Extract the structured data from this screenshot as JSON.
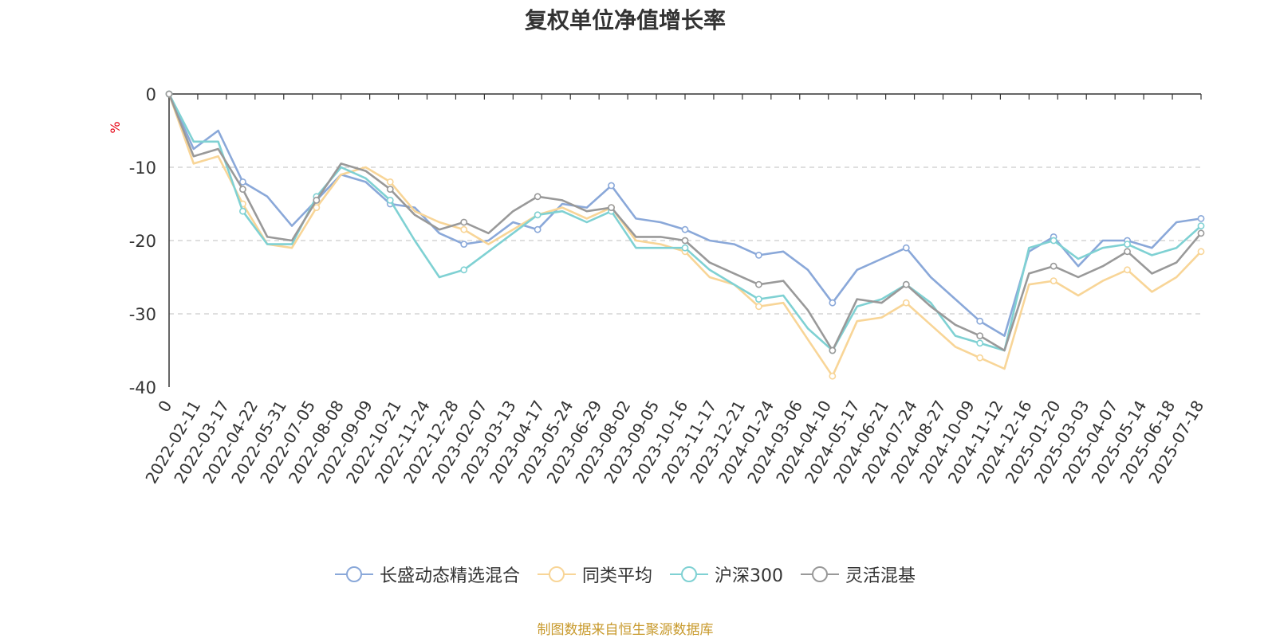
{
  "chart_data": {
    "type": "line",
    "title": "复权单位净值增长率",
    "ylabel": "%",
    "ylim": [
      -40,
      0
    ],
    "yticks": [
      0,
      -10,
      -20,
      -30,
      -40
    ],
    "grid": true,
    "legend_position": "bottom-center",
    "x_ticks": [
      "0",
      "2022-02-11",
      "2022-03-17",
      "2022-04-22",
      "2022-05-31",
      "2022-07-05",
      "2022-08-08",
      "2022-09-09",
      "2022-10-21",
      "2022-11-24",
      "2022-12-28",
      "2023-02-07",
      "2023-03-13",
      "2023-04-17",
      "2023-05-24",
      "2023-06-29",
      "2023-08-02",
      "2023-09-05",
      "2023-10-16",
      "2023-11-17",
      "2023-12-21",
      "2024-01-24",
      "2024-03-06",
      "2024-04-10",
      "2024-05-17",
      "2024-06-21",
      "2024-07-24",
      "2024-08-27",
      "2024-10-09",
      "2024-11-12",
      "2024-12-16",
      "2025-01-20",
      "2025-03-03",
      "2025-04-07",
      "2025-05-14",
      "2025-06-18",
      "2025-07-18"
    ],
    "series": [
      {
        "name": "长盛动态精选混合",
        "color": "#8aa8d9",
        "values": [
          0,
          -7.5,
          -5,
          -12,
          -14,
          -18,
          -14.5,
          -11,
          -12,
          -15,
          -15.5,
          -19,
          -20.5,
          -20,
          -17.5,
          -18.5,
          -15,
          -15.5,
          -12.5,
          -17,
          -17.5,
          -18.5,
          -20,
          -20.5,
          -22,
          -21.5,
          -24,
          -28.5,
          -24,
          -22.5,
          -21,
          -25,
          -28,
          -31,
          -33,
          -21.5,
          -19.5,
          -23.5,
          -20,
          -20,
          -21,
          -17.5,
          -17
        ]
      },
      {
        "name": "同类平均",
        "color": "#f8d597",
        "values": [
          0,
          -9.5,
          -8.5,
          -15,
          -20.5,
          -21,
          -15.5,
          -11,
          -10,
          -12,
          -16,
          -17.5,
          -18.5,
          -20.5,
          -18.5,
          -16.5,
          -15.5,
          -17,
          -15.5,
          -20,
          -20.5,
          -21.5,
          -25,
          -26,
          -29,
          -28.5,
          -33.5,
          -38.5,
          -31,
          -30.5,
          -28.5,
          -31.5,
          -34.5,
          -36,
          -37.5,
          -26,
          -25.5,
          -27.5,
          -25.5,
          -24,
          -27,
          -25,
          -21.5
        ]
      },
      {
        "name": "沪深300",
        "color": "#7fd1d3",
        "values": [
          0,
          -6.5,
          -6.5,
          -16,
          -20.5,
          -20.5,
          -14,
          -10,
          -11.5,
          -14.5,
          -20,
          -25,
          -24,
          -21.5,
          -19,
          -16.5,
          -16,
          -17.5,
          -16,
          -21,
          -21,
          -21,
          -24,
          -26,
          -28,
          -27.5,
          -32,
          -35,
          -29,
          -28,
          -26,
          -28.5,
          -33,
          -34,
          -35,
          -21,
          -20,
          -22.5,
          -21,
          -20.5,
          -22,
          -21,
          -18
        ]
      },
      {
        "name": "灵活混基",
        "color": "#999999",
        "values": [
          0,
          -8.5,
          -7.5,
          -13,
          -19.5,
          -20,
          -14.5,
          -9.5,
          -10.5,
          -13,
          -16.5,
          -18.5,
          -17.5,
          -19,
          -16,
          -14,
          -14.5,
          -16,
          -15.5,
          -19.5,
          -19.5,
          -20,
          -23,
          -24.5,
          -26,
          -25.5,
          -29.5,
          -35,
          -28,
          -28.5,
          -26,
          -29,
          -31.5,
          -33,
          -35,
          -24.5,
          -23.5,
          -25,
          -23.5,
          -21.5,
          -24.5,
          -23,
          -19
        ]
      }
    ]
  },
  "source_note": "制图数据来自恒生聚源数据库"
}
